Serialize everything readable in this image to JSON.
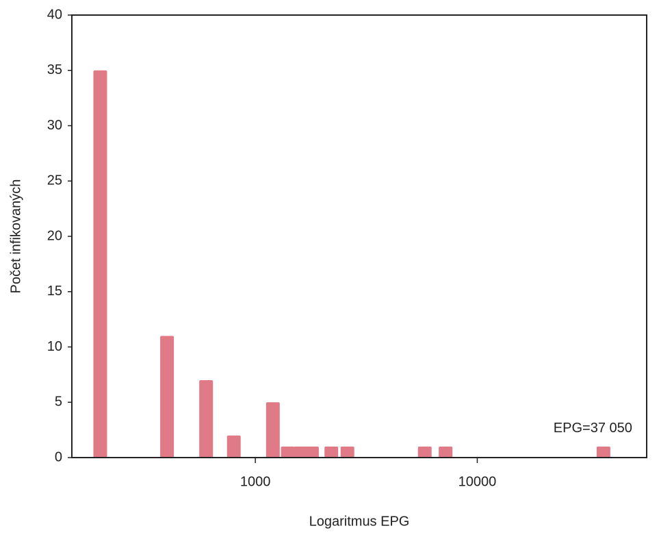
{
  "chart_data": {
    "type": "bar",
    "xlabel": "Logaritmus EPG",
    "ylabel": "Počet infikovaných",
    "annotation": "EPG=37 050",
    "x": [
      200,
      400,
      600,
      800,
      1200,
      1400,
      1600,
      1800,
      2200,
      2600,
      5800,
      7200,
      37050
    ],
    "values": [
      35,
      11,
      7,
      2,
      5,
      1,
      1,
      1,
      1,
      1,
      1,
      1,
      1
    ],
    "color": "#e07a87",
    "xscale": "log",
    "xlim": [
      149,
      58000
    ],
    "xticks": [
      1000,
      10000
    ],
    "ylim": [
      0,
      40
    ],
    "yticks": [
      0,
      5,
      10,
      15,
      20,
      25,
      30,
      35,
      40
    ]
  }
}
